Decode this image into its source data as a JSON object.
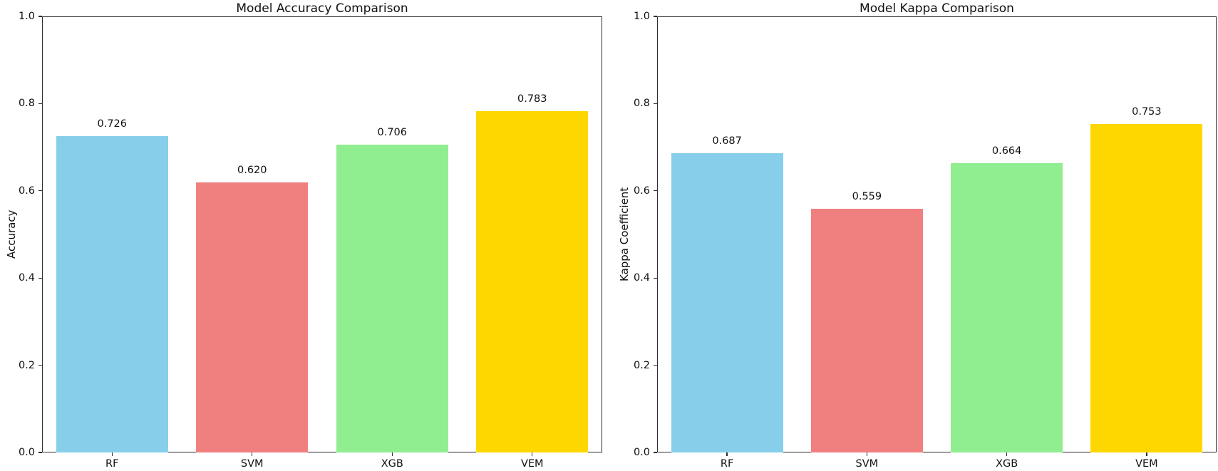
{
  "figure": {
    "background": "#ffffff",
    "frame_color": "#2e2e2e",
    "text_color": "#111111"
  },
  "chart_data": [
    {
      "type": "bar",
      "title": "Model Accuracy Comparison",
      "xlabel": "",
      "ylabel": "Accuracy",
      "categories": [
        "RF",
        "SVM",
        "XGB",
        "VEM"
      ],
      "values": [
        0.726,
        0.62,
        0.706,
        0.783
      ],
      "value_labels": [
        "0.726",
        "0.620",
        "0.706",
        "0.783"
      ],
      "bar_colors": [
        "#87CEEB",
        "#F08080",
        "#90EE90",
        "#FFD700"
      ],
      "bar_color_names": [
        "skyblue",
        "lightcoral",
        "lightgreen",
        "gold"
      ],
      "ylim": [
        0.0,
        1.0
      ],
      "yticks": [
        "0.0",
        "0.2",
        "0.4",
        "0.6",
        "0.8",
        "1.0"
      ],
      "ytick_values": [
        0.0,
        0.2,
        0.4,
        0.6,
        0.8,
        1.0
      ],
      "grid": false,
      "legend": null
    },
    {
      "type": "bar",
      "title": "Model Kappa Comparison",
      "xlabel": "",
      "ylabel": "Kappa Coefficient",
      "categories": [
        "RF",
        "SVM",
        "XGB",
        "VEM"
      ],
      "values": [
        0.687,
        0.559,
        0.664,
        0.753
      ],
      "value_labels": [
        "0.687",
        "0.559",
        "0.664",
        "0.753"
      ],
      "bar_colors": [
        "#87CEEB",
        "#F08080",
        "#90EE90",
        "#FFD700"
      ],
      "bar_color_names": [
        "skyblue",
        "lightcoral",
        "lightgreen",
        "gold"
      ],
      "ylim": [
        0.0,
        1.0
      ],
      "yticks": [
        "0.0",
        "0.2",
        "0.4",
        "0.6",
        "0.8",
        "1.0"
      ],
      "ytick_values": [
        0.0,
        0.2,
        0.4,
        0.6,
        0.8,
        1.0
      ],
      "grid": false,
      "legend": null
    }
  ]
}
